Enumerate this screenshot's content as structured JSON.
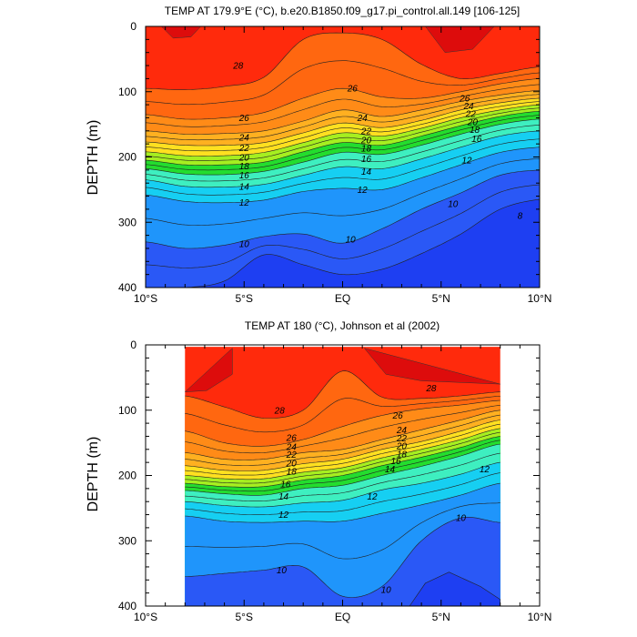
{
  "chart_data": [
    {
      "type": "contour",
      "title": "TEMP AT 179.9°E (°C), b.e20.B1850.f09_g17.pi_control.all.149 [106-125]",
      "xlabel": "",
      "ylabel": "DEPTH (m)",
      "x_ticks": [
        "10°S",
        "5°S",
        "EQ",
        "5°N",
        "10°N"
      ],
      "x_values": [
        -10,
        -5,
        0,
        5,
        10
      ],
      "xlim": [
        -10,
        10
      ],
      "y_ticks": [
        "0",
        "100",
        "200",
        "300",
        "400"
      ],
      "y_values": [
        0,
        100,
        200,
        300,
        400
      ],
      "ylim": [
        0,
        400
      ],
      "y_reversed": true,
      "data_extent": [
        -10,
        10
      ],
      "isotherm_x": [
        -10,
        -8,
        -6,
        -4,
        -2,
        0,
        2,
        4,
        6,
        8,
        10
      ],
      "isotherms": [
        {
          "level": 28,
          "depth": [
            95,
            97,
            92,
            78,
            20,
            10,
            20,
            58,
            80,
            72,
            62
          ]
        },
        {
          "level": 26,
          "depth": [
            135,
            142,
            140,
            132,
            110,
            95,
            108,
            110,
            100,
            88,
            80
          ]
        },
        {
          "level": 24,
          "depth": [
            160,
            165,
            164,
            160,
            145,
            128,
            138,
            128,
            115,
            105,
            98
          ]
        },
        {
          "level": 22,
          "depth": [
            177,
            182,
            182,
            178,
            163,
            148,
            155,
            144,
            128,
            117,
            110
          ]
        },
        {
          "level": 20,
          "depth": [
            192,
            198,
            198,
            193,
            178,
            163,
            168,
            156,
            140,
            128,
            120
          ]
        },
        {
          "level": 18,
          "depth": [
            205,
            212,
            212,
            208,
            192,
            178,
            182,
            168,
            152,
            138,
            130
          ]
        },
        {
          "level": 16,
          "depth": [
            218,
            226,
            227,
            222,
            208,
            193,
            196,
            182,
            165,
            150,
            142
          ]
        },
        {
          "level": 14,
          "depth": [
            235,
            245,
            246,
            242,
            228,
            215,
            218,
            203,
            185,
            168,
            160
          ]
        },
        {
          "level": 12,
          "depth": [
            258,
            268,
            270,
            266,
            253,
            248,
            250,
            232,
            212,
            193,
            185
          ]
        },
        {
          "level": 10,
          "depth": [
            330,
            340,
            335,
            322,
            318,
            332,
            310,
            280,
            255,
            228,
            220
          ]
        },
        {
          "level": 8,
          "depth": [
            400,
            400,
            390,
            350,
            365,
            380,
            372,
            348,
            318,
            280,
            265
          ]
        }
      ],
      "warm_pool_29": [
        {
          "x": [
            -9.2,
            -8.6,
            -7.7,
            -7.2
          ],
          "depth": [
            0,
            18,
            16,
            0
          ]
        },
        {
          "x": [
            4.2,
            5.2,
            6.6,
            7.7
          ],
          "depth": [
            0,
            40,
            35,
            0
          ]
        }
      ],
      "contour_labels": [
        {
          "text": "28",
          "x": -5.3,
          "depth": 60
        },
        {
          "text": "26",
          "x": 0.5,
          "depth": 95
        },
        {
          "text": "26",
          "x": 6.2,
          "depth": 110
        },
        {
          "text": "26",
          "x": -5.0,
          "depth": 140
        },
        {
          "text": "24",
          "x": 1.0,
          "depth": 140
        },
        {
          "text": "24",
          "x": 6.4,
          "depth": 122
        },
        {
          "text": "22",
          "x": 6.5,
          "depth": 134
        },
        {
          "text": "20",
          "x": 6.6,
          "depth": 146
        },
        {
          "text": "18",
          "x": 6.7,
          "depth": 158
        },
        {
          "text": "16",
          "x": 6.8,
          "depth": 172
        },
        {
          "text": "12",
          "x": 6.3,
          "depth": 205
        },
        {
          "text": "24",
          "x": -5.0,
          "depth": 170
        },
        {
          "text": "22",
          "x": -5.0,
          "depth": 186
        },
        {
          "text": "20",
          "x": -5.0,
          "depth": 201
        },
        {
          "text": "18",
          "x": -5.0,
          "depth": 214
        },
        {
          "text": "16",
          "x": -5.0,
          "depth": 228
        },
        {
          "text": "14",
          "x": -5.0,
          "depth": 245
        },
        {
          "text": "12",
          "x": -5.0,
          "depth": 270
        },
        {
          "text": "10",
          "x": -5.0,
          "depth": 333
        },
        {
          "text": "22",
          "x": 1.2,
          "depth": 160
        },
        {
          "text": "20",
          "x": 1.2,
          "depth": 174
        },
        {
          "text": "18",
          "x": 1.2,
          "depth": 187
        },
        {
          "text": "16",
          "x": 1.2,
          "depth": 203
        },
        {
          "text": "14",
          "x": 1.2,
          "depth": 222
        },
        {
          "text": "12",
          "x": 1.0,
          "depth": 250
        },
        {
          "text": "10",
          "x": 0.4,
          "depth": 326
        },
        {
          "text": "10",
          "x": 5.6,
          "depth": 272
        },
        {
          "text": "8",
          "x": 9.0,
          "depth": 290
        }
      ]
    },
    {
      "type": "contour",
      "title": "TEMP AT 180 (°C), Johnson et al (2002)",
      "xlabel": "",
      "ylabel": "DEPTH (m)",
      "x_ticks": [
        "10°S",
        "5°S",
        "EQ",
        "5°N",
        "10°N"
      ],
      "x_values": [
        -10,
        -5,
        0,
        5,
        10
      ],
      "xlim": [
        -10,
        10
      ],
      "y_ticks": [
        "0",
        "100",
        "200",
        "300",
        "400"
      ],
      "y_values": [
        0,
        100,
        200,
        300,
        400
      ],
      "ylim": [
        0,
        400
      ],
      "y_reversed": true,
      "data_extent": [
        -8,
        8
      ],
      "isotherm_x": [
        -8,
        -6,
        -4,
        -2,
        0,
        2,
        4,
        6,
        8
      ],
      "isotherms": [
        {
          "level": 28,
          "depth": [
            78,
            95,
            112,
            100,
            40,
            80,
            82,
            78,
            72
          ]
        },
        {
          "level": 26,
          "depth": [
            132,
            150,
            155,
            145,
            125,
            108,
            98,
            92,
            85
          ]
        },
        {
          "level": 24,
          "depth": [
            165,
            175,
            175,
            165,
            160,
            145,
            130,
            115,
            100
          ]
        },
        {
          "level": 22,
          "depth": [
            185,
            192,
            192,
            182,
            175,
            160,
            148,
            132,
            115
          ]
        },
        {
          "level": 20,
          "depth": [
            200,
            205,
            205,
            195,
            188,
            173,
            160,
            145,
            128
          ]
        },
        {
          "level": 18,
          "depth": [
            212,
            217,
            217,
            207,
            200,
            185,
            172,
            157,
            140
          ]
        },
        {
          "level": 16,
          "depth": [
            223,
            228,
            230,
            220,
            215,
            200,
            186,
            170,
            152
          ]
        },
        {
          "level": 14,
          "depth": [
            240,
            246,
            248,
            242,
            238,
            222,
            212,
            198,
            180
          ]
        },
        {
          "level": 12,
          "depth": [
            262,
            270,
            272,
            270,
            270,
            258,
            245,
            230,
            212
          ]
        },
        {
          "level": 10,
          "depth": [
            355,
            350,
            345,
            340,
            385,
            370,
            300,
            265,
            272
          ]
        }
      ],
      "warm_pool_29": [
        {
          "x": [
            -8,
            -6.9,
            -5.6,
            -5.6
          ],
          "depth": [
            72,
            70,
            45,
            5
          ]
        },
        {
          "x": [
            1.1,
            2.2,
            4.0,
            8.0
          ],
          "depth": [
            5,
            45,
            55,
            60
          ]
        }
      ],
      "deep_8_pool": {
        "x": [
          3.4,
          4.2,
          5.4,
          7.0,
          8.0
        ],
        "depth": [
          400,
          365,
          348,
          370,
          390
        ]
      },
      "contour_labels": [
        {
          "text": "28",
          "x": -3.2,
          "depth": 100
        },
        {
          "text": "28",
          "x": 4.5,
          "depth": 66
        },
        {
          "text": "26",
          "x": 2.8,
          "depth": 108
        },
        {
          "text": "26",
          "x": -2.6,
          "depth": 142
        },
        {
          "text": "24",
          "x": -2.6,
          "depth": 156
        },
        {
          "text": "22",
          "x": -2.6,
          "depth": 168
        },
        {
          "text": "20",
          "x": -2.6,
          "depth": 181
        },
        {
          "text": "18",
          "x": -2.6,
          "depth": 194
        },
        {
          "text": "16",
          "x": -2.9,
          "depth": 213
        },
        {
          "text": "14",
          "x": -3.0,
          "depth": 232
        },
        {
          "text": "12",
          "x": -3.0,
          "depth": 260
        },
        {
          "text": "24",
          "x": 3.0,
          "depth": 130
        },
        {
          "text": "22",
          "x": 3.0,
          "depth": 143
        },
        {
          "text": "20",
          "x": 3.0,
          "depth": 155
        },
        {
          "text": "18",
          "x": 3.0,
          "depth": 167
        },
        {
          "text": "16",
          "x": 2.7,
          "depth": 178
        },
        {
          "text": "14",
          "x": 2.4,
          "depth": 190
        },
        {
          "text": "12",
          "x": 1.5,
          "depth": 232
        },
        {
          "text": "12",
          "x": 7.2,
          "depth": 190
        },
        {
          "text": "10",
          "x": 6.0,
          "depth": 265
        },
        {
          "text": "10",
          "x": 2.2,
          "depth": 375
        },
        {
          "text": "10",
          "x": -3.1,
          "depth": 345
        }
      ]
    }
  ]
}
